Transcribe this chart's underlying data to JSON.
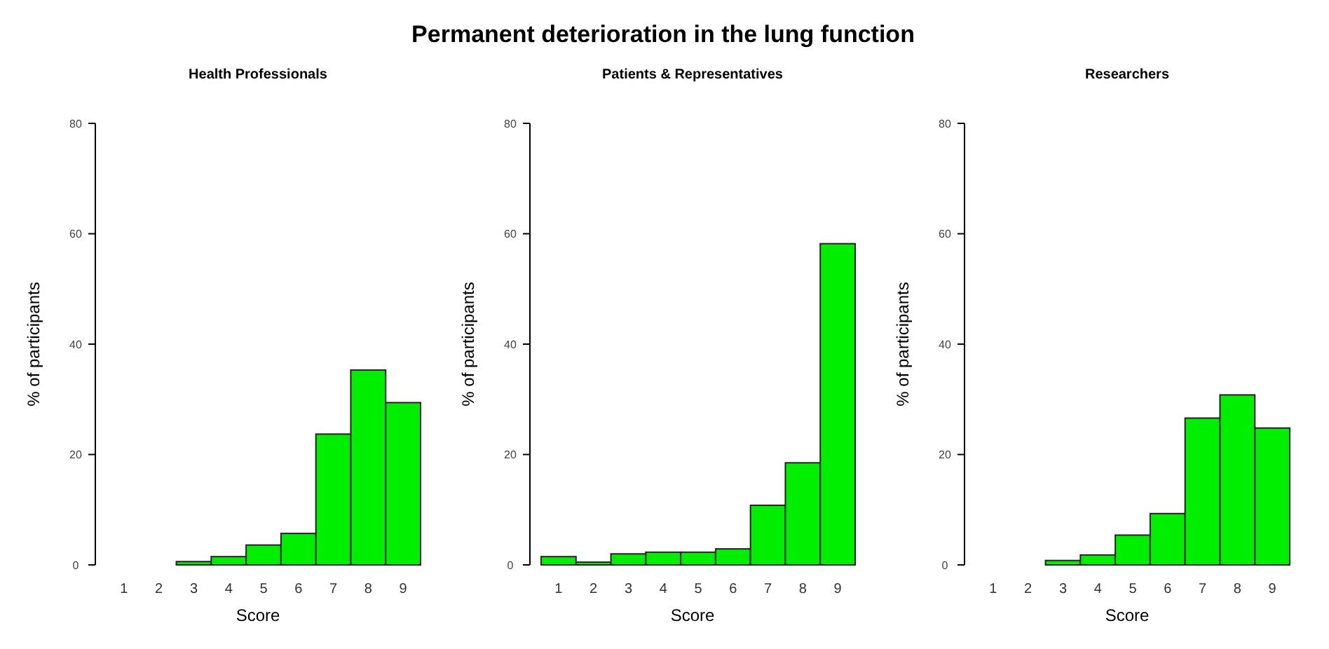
{
  "chart_data": [
    {
      "type": "other",
      "title": "Permanent deterioration in the lung function"
    },
    {
      "type": "bar",
      "subtitle": "Health Professionals",
      "xlabel": "Score",
      "ylabel": "% of participants",
      "categories": [
        "1",
        "2",
        "3",
        "4",
        "5",
        "6",
        "7",
        "8",
        "9"
      ],
      "values": [
        0,
        0,
        0.6,
        1.5,
        3.6,
        5.7,
        23.7,
        35.3,
        29.4
      ],
      "color": "#00ee00",
      "ylim": [
        0,
        80
      ],
      "yticks": [
        0,
        20,
        40,
        60,
        80
      ]
    },
    {
      "type": "bar",
      "subtitle": "Patients & Representatives",
      "xlabel": "Score",
      "ylabel": "% of participants",
      "categories": [
        "1",
        "2",
        "3",
        "4",
        "5",
        "6",
        "7",
        "8",
        "9"
      ],
      "values": [
        1.5,
        0.5,
        2.0,
        2.3,
        2.3,
        2.9,
        10.8,
        18.5,
        58.2
      ],
      "color": "#00ee00",
      "ylim": [
        0,
        80
      ],
      "yticks": [
        0,
        20,
        40,
        60,
        80
      ]
    },
    {
      "type": "bar",
      "subtitle": "Researchers",
      "xlabel": "Score",
      "ylabel": "% of participants",
      "categories": [
        "1",
        "2",
        "3",
        "4",
        "5",
        "6",
        "7",
        "8",
        "9"
      ],
      "values": [
        0,
        0,
        0.8,
        1.8,
        5.4,
        9.3,
        26.6,
        30.8,
        24.8
      ],
      "color": "#00ee00",
      "ylim": [
        0,
        80
      ],
      "yticks": [
        0,
        20,
        40,
        60,
        80
      ]
    }
  ]
}
